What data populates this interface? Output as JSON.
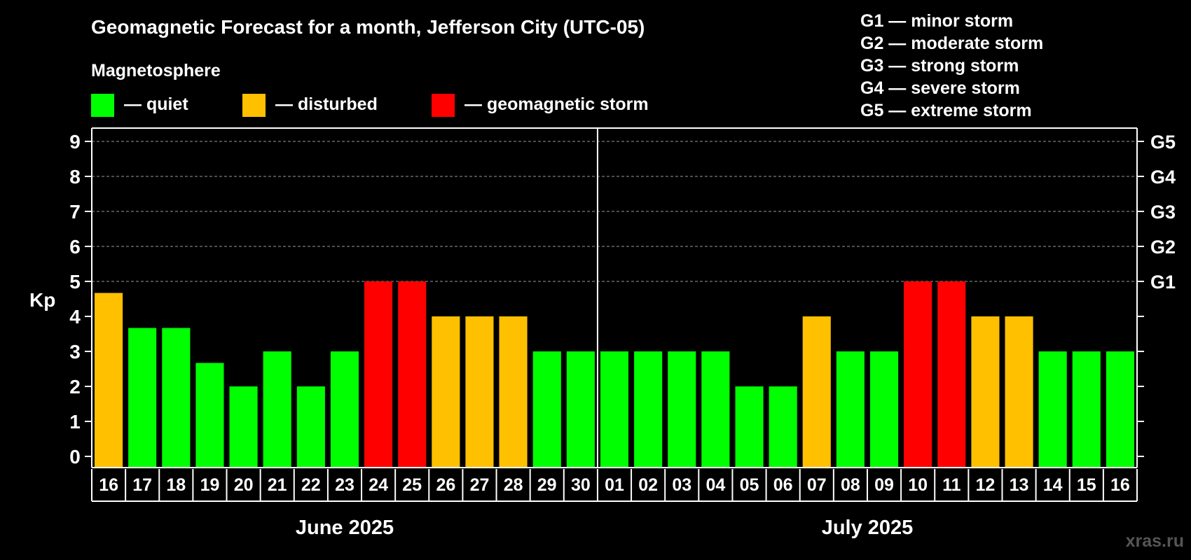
{
  "chart_data": {
    "type": "bar",
    "title": "Geomagnetic Forecast for a month, Jefferson City (UTC-05)",
    "subtitle": "Magnetosphere",
    "ylabel": "Kp",
    "ylim": [
      0,
      9
    ],
    "yticks": [
      0,
      1,
      2,
      3,
      4,
      5,
      6,
      7,
      8,
      9
    ],
    "grid": "dashed horizontal at 6, 7, 8, 9",
    "categories": [
      "16",
      "17",
      "18",
      "19",
      "20",
      "21",
      "22",
      "23",
      "24",
      "25",
      "26",
      "27",
      "28",
      "29",
      "30",
      "01",
      "02",
      "03",
      "04",
      "05",
      "06",
      "07",
      "08",
      "09",
      "10",
      "11",
      "12",
      "13",
      "14",
      "15",
      "16"
    ],
    "values": [
      4.67,
      3.67,
      3.67,
      2.67,
      2,
      3,
      2,
      3,
      5,
      5,
      4,
      4,
      4,
      3,
      3,
      3,
      3,
      3,
      3,
      2,
      2,
      4,
      3,
      3,
      5,
      5,
      4,
      4,
      3,
      3,
      3
    ],
    "status": [
      "disturbed",
      "quiet",
      "quiet",
      "quiet",
      "quiet",
      "quiet",
      "quiet",
      "quiet",
      "storm",
      "storm",
      "disturbed",
      "disturbed",
      "disturbed",
      "quiet",
      "quiet",
      "quiet",
      "quiet",
      "quiet",
      "quiet",
      "quiet",
      "quiet",
      "disturbed",
      "quiet",
      "quiet",
      "storm",
      "storm",
      "disturbed",
      "disturbed",
      "quiet",
      "quiet",
      "quiet"
    ],
    "months": [
      {
        "label": "June 2025",
        "from": 0,
        "to": 14
      },
      {
        "label": "July 2025",
        "from": 15,
        "to": 30
      }
    ],
    "status_legend": [
      {
        "key": "quiet",
        "label": "— quiet",
        "color": "#00ff00"
      },
      {
        "key": "disturbed",
        "label": "— disturbed",
        "color": "#ffc000"
      },
      {
        "key": "storm",
        "label": "— geomagnetic storm",
        "color": "#ff0000"
      }
    ],
    "g_levels": [
      {
        "kp": 5,
        "label": "G1"
      },
      {
        "kp": 6,
        "label": "G2"
      },
      {
        "kp": 7,
        "label": "G3"
      },
      {
        "kp": 8,
        "label": "G4"
      },
      {
        "kp": 9,
        "label": "G5"
      }
    ],
    "g_legend": [
      "G1 — minor storm",
      "G2 — moderate storm",
      "G3 — strong storm",
      "G4 — severe storm",
      "G5 — extreme storm"
    ]
  },
  "watermark": "xras.ru"
}
